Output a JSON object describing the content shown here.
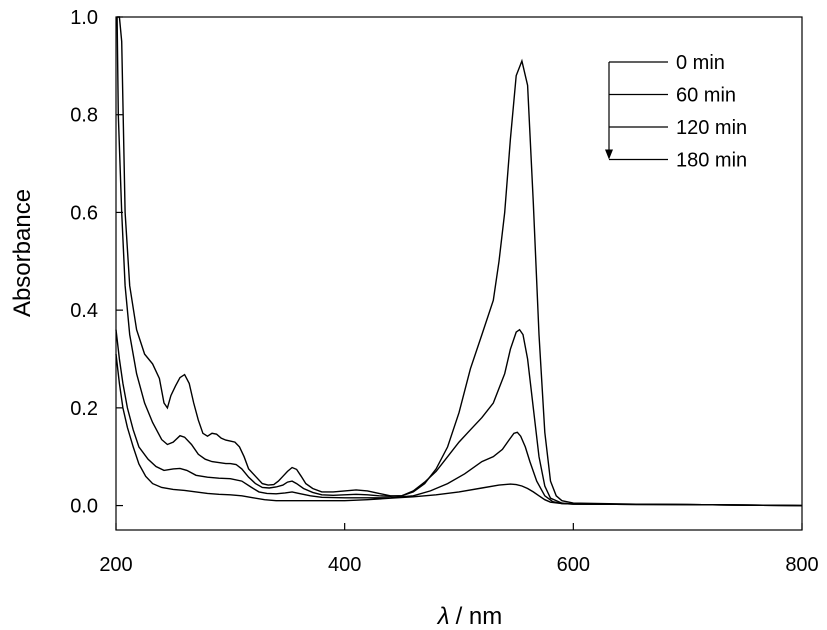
{
  "chart_data": {
    "type": "line",
    "title": "",
    "xlabel": {
      "symbol": "λ",
      "unit": "/ nm"
    },
    "ylabel": "Absorbance",
    "xlim": [
      200,
      800
    ],
    "ylim": [
      -0.05,
      1.0
    ],
    "x_ticks": [
      200,
      400,
      600,
      800
    ],
    "y_ticks": [
      0.0,
      0.2,
      0.4,
      0.6,
      0.8,
      1.0
    ],
    "y_tick_labels": [
      "0.0",
      "0.2",
      "0.4",
      "0.6",
      "0.8",
      "1.0"
    ],
    "grid": false,
    "legend": {
      "placement": "top-right",
      "arrow": "down",
      "entries": [
        "0 min",
        "60 min",
        "120 min",
        "180 min"
      ]
    },
    "series": [
      {
        "name": "0 min",
        "points": [
          [
            201,
            1.0
          ],
          [
            203,
            1.0
          ],
          [
            205,
            0.95
          ],
          [
            208,
            0.6
          ],
          [
            212,
            0.45
          ],
          [
            218,
            0.36
          ],
          [
            225,
            0.31
          ],
          [
            232,
            0.29
          ],
          [
            238,
            0.26
          ],
          [
            242,
            0.21
          ],
          [
            245,
            0.2
          ],
          [
            248,
            0.225
          ],
          [
            252,
            0.245
          ],
          [
            256,
            0.262
          ],
          [
            260,
            0.268
          ],
          [
            264,
            0.25
          ],
          [
            268,
            0.21
          ],
          [
            272,
            0.175
          ],
          [
            276,
            0.148
          ],
          [
            280,
            0.142
          ],
          [
            284,
            0.148
          ],
          [
            288,
            0.146
          ],
          [
            292,
            0.138
          ],
          [
            296,
            0.134
          ],
          [
            300,
            0.132
          ],
          [
            304,
            0.13
          ],
          [
            308,
            0.12
          ],
          [
            312,
            0.1
          ],
          [
            316,
            0.075
          ],
          [
            322,
            0.06
          ],
          [
            328,
            0.045
          ],
          [
            333,
            0.042
          ],
          [
            338,
            0.043
          ],
          [
            342,
            0.05
          ],
          [
            346,
            0.06
          ],
          [
            350,
            0.07
          ],
          [
            354,
            0.078
          ],
          [
            358,
            0.074
          ],
          [
            362,
            0.06
          ],
          [
            366,
            0.045
          ],
          [
            372,
            0.035
          ],
          [
            380,
            0.028
          ],
          [
            390,
            0.028
          ],
          [
            400,
            0.03
          ],
          [
            410,
            0.032
          ],
          [
            420,
            0.03
          ],
          [
            430,
            0.025
          ],
          [
            440,
            0.02
          ],
          [
            450,
            0.02
          ],
          [
            460,
            0.028
          ],
          [
            470,
            0.045
          ],
          [
            480,
            0.075
          ],
          [
            490,
            0.12
          ],
          [
            500,
            0.19
          ],
          [
            510,
            0.28
          ],
          [
            520,
            0.35
          ],
          [
            530,
            0.42
          ],
          [
            535,
            0.5
          ],
          [
            540,
            0.6
          ],
          [
            545,
            0.75
          ],
          [
            550,
            0.88
          ],
          [
            555,
            0.91
          ],
          [
            560,
            0.86
          ],
          [
            565,
            0.62
          ],
          [
            570,
            0.35
          ],
          [
            575,
            0.15
          ],
          [
            580,
            0.05
          ],
          [
            585,
            0.02
          ],
          [
            590,
            0.01
          ],
          [
            600,
            0.005
          ],
          [
            650,
            0.003
          ],
          [
            700,
            0.002
          ],
          [
            800,
            0.0
          ]
        ]
      },
      {
        "name": "60 min",
        "points": [
          [
            201,
            1.0
          ],
          [
            202,
            0.8
          ],
          [
            205,
            0.6
          ],
          [
            208,
            0.45
          ],
          [
            212,
            0.35
          ],
          [
            218,
            0.27
          ],
          [
            225,
            0.21
          ],
          [
            232,
            0.17
          ],
          [
            240,
            0.135
          ],
          [
            245,
            0.125
          ],
          [
            250,
            0.13
          ],
          [
            256,
            0.143
          ],
          [
            260,
            0.14
          ],
          [
            266,
            0.125
          ],
          [
            272,
            0.105
          ],
          [
            278,
            0.095
          ],
          [
            284,
            0.09
          ],
          [
            290,
            0.088
          ],
          [
            296,
            0.086
          ],
          [
            300,
            0.086
          ],
          [
            305,
            0.084
          ],
          [
            310,
            0.075
          ],
          [
            316,
            0.058
          ],
          [
            322,
            0.045
          ],
          [
            328,
            0.037
          ],
          [
            334,
            0.036
          ],
          [
            340,
            0.038
          ],
          [
            346,
            0.042
          ],
          [
            350,
            0.048
          ],
          [
            354,
            0.05
          ],
          [
            358,
            0.045
          ],
          [
            364,
            0.035
          ],
          [
            372,
            0.027
          ],
          [
            380,
            0.022
          ],
          [
            390,
            0.021
          ],
          [
            400,
            0.022
          ],
          [
            410,
            0.023
          ],
          [
            420,
            0.022
          ],
          [
            430,
            0.02
          ],
          [
            440,
            0.019
          ],
          [
            450,
            0.02
          ],
          [
            460,
            0.03
          ],
          [
            470,
            0.048
          ],
          [
            480,
            0.07
          ],
          [
            490,
            0.1
          ],
          [
            500,
            0.13
          ],
          [
            510,
            0.155
          ],
          [
            520,
            0.18
          ],
          [
            530,
            0.21
          ],
          [
            540,
            0.27
          ],
          [
            545,
            0.32
          ],
          [
            550,
            0.355
          ],
          [
            553,
            0.36
          ],
          [
            556,
            0.35
          ],
          [
            560,
            0.3
          ],
          [
            565,
            0.2
          ],
          [
            570,
            0.1
          ],
          [
            575,
            0.04
          ],
          [
            580,
            0.015
          ],
          [
            590,
            0.005
          ],
          [
            600,
            0.003
          ],
          [
            700,
            0.002
          ],
          [
            800,
            0.0
          ]
        ]
      },
      {
        "name": "120 min",
        "points": [
          [
            200,
            0.36
          ],
          [
            203,
            0.3
          ],
          [
            206,
            0.25
          ],
          [
            210,
            0.2
          ],
          [
            215,
            0.155
          ],
          [
            220,
            0.12
          ],
          [
            228,
            0.095
          ],
          [
            235,
            0.08
          ],
          [
            242,
            0.072
          ],
          [
            250,
            0.075
          ],
          [
            256,
            0.076
          ],
          [
            262,
            0.072
          ],
          [
            270,
            0.062
          ],
          [
            280,
            0.058
          ],
          [
            290,
            0.056
          ],
          [
            300,
            0.055
          ],
          [
            310,
            0.05
          ],
          [
            318,
            0.038
          ],
          [
            325,
            0.028
          ],
          [
            332,
            0.025
          ],
          [
            340,
            0.024
          ],
          [
            348,
            0.026
          ],
          [
            354,
            0.028
          ],
          [
            360,
            0.025
          ],
          [
            370,
            0.02
          ],
          [
            380,
            0.017
          ],
          [
            400,
            0.016
          ],
          [
            420,
            0.016
          ],
          [
            440,
            0.016
          ],
          [
            460,
            0.02
          ],
          [
            475,
            0.03
          ],
          [
            490,
            0.045
          ],
          [
            505,
            0.065
          ],
          [
            520,
            0.09
          ],
          [
            530,
            0.1
          ],
          [
            538,
            0.115
          ],
          [
            544,
            0.135
          ],
          [
            548,
            0.148
          ],
          [
            551,
            0.15
          ],
          [
            554,
            0.142
          ],
          [
            558,
            0.12
          ],
          [
            562,
            0.09
          ],
          [
            568,
            0.05
          ],
          [
            575,
            0.02
          ],
          [
            582,
            0.008
          ],
          [
            590,
            0.004
          ],
          [
            600,
            0.003
          ],
          [
            700,
            0.002
          ],
          [
            800,
            0.0
          ]
        ]
      },
      {
        "name": "180 min",
        "points": [
          [
            200,
            0.31
          ],
          [
            203,
            0.25
          ],
          [
            206,
            0.2
          ],
          [
            210,
            0.16
          ],
          [
            215,
            0.12
          ],
          [
            220,
            0.085
          ],
          [
            226,
            0.06
          ],
          [
            232,
            0.045
          ],
          [
            240,
            0.037
          ],
          [
            250,
            0.033
          ],
          [
            260,
            0.031
          ],
          [
            270,
            0.028
          ],
          [
            280,
            0.025
          ],
          [
            290,
            0.023
          ],
          [
            300,
            0.022
          ],
          [
            310,
            0.02
          ],
          [
            320,
            0.016
          ],
          [
            330,
            0.012
          ],
          [
            340,
            0.01
          ],
          [
            350,
            0.01
          ],
          [
            360,
            0.01
          ],
          [
            370,
            0.01
          ],
          [
            380,
            0.01
          ],
          [
            400,
            0.01
          ],
          [
            420,
            0.012
          ],
          [
            440,
            0.015
          ],
          [
            460,
            0.018
          ],
          [
            480,
            0.022
          ],
          [
            500,
            0.028
          ],
          [
            520,
            0.036
          ],
          [
            535,
            0.042
          ],
          [
            545,
            0.044
          ],
          [
            550,
            0.043
          ],
          [
            555,
            0.04
          ],
          [
            560,
            0.035
          ],
          [
            565,
            0.028
          ],
          [
            570,
            0.02
          ],
          [
            575,
            0.012
          ],
          [
            580,
            0.007
          ],
          [
            590,
            0.004
          ],
          [
            600,
            0.003
          ],
          [
            700,
            0.002
          ],
          [
            800,
            0.0
          ]
        ]
      }
    ]
  }
}
